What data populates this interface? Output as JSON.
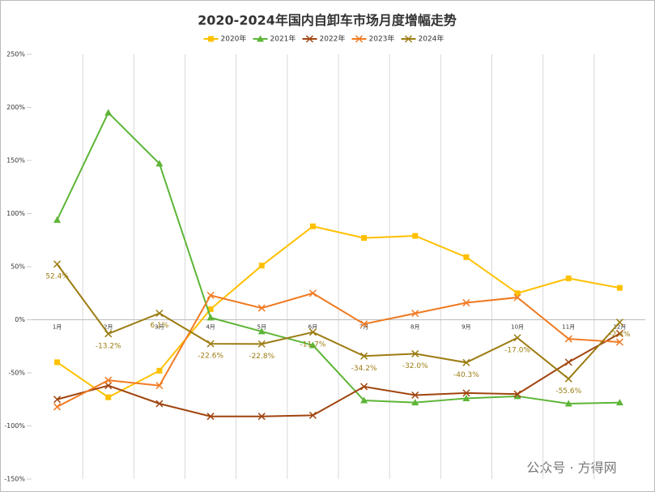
{
  "chart_data": {
    "type": "line",
    "title": "2020-2024年国内自卸车市场月度增幅走势",
    "categories": [
      "1月",
      "2月",
      "3月",
      "4月",
      "5月",
      "6月",
      "7月",
      "8月",
      "9月",
      "10月",
      "11月",
      "12月"
    ],
    "ylim": [
      -150,
      250
    ],
    "yticks": [
      {
        "value": -150,
        "label": "-150%"
      },
      {
        "value": -100,
        "label": "-100%"
      },
      {
        "value": -50,
        "label": "-50%"
      },
      {
        "value": 0,
        "label": "0%"
      },
      {
        "value": 50,
        "label": "50%"
      },
      {
        "value": 100,
        "label": "100%"
      },
      {
        "value": 150,
        "label": "150%"
      },
      {
        "value": 200,
        "label": "200%"
      },
      {
        "value": 250,
        "label": "250%"
      }
    ],
    "series": [
      {
        "name": "2020年",
        "color": "#FFC000",
        "marker": "square",
        "values": [
          -40,
          -73,
          -48,
          10,
          51,
          88,
          77,
          79,
          59,
          25,
          39,
          30
        ]
      },
      {
        "name": "2021年",
        "color": "#5DB536",
        "marker": "triangle",
        "values": [
          94,
          195,
          147,
          2,
          -11,
          -24,
          -76,
          -78,
          -74,
          -72,
          -79,
          -78
        ]
      },
      {
        "name": "2022年",
        "color": "#A0440E",
        "marker": "cross",
        "values": [
          -75,
          -62,
          -79,
          -91,
          -91,
          -90,
          -63,
          -71,
          -69,
          -70,
          -40,
          -13
        ]
      },
      {
        "name": "2023年",
        "color": "#F07A21",
        "marker": "cross",
        "values": [
          -82,
          -57,
          -62,
          23,
          11,
          25,
          -4,
          6,
          16,
          21,
          -18,
          -21
        ]
      },
      {
        "name": "2024年",
        "color": "#9C7C12",
        "marker": "cross",
        "values": [
          52.4,
          -13.2,
          6.1,
          -22.6,
          -22.8,
          -11.7,
          -34.2,
          -32.0,
          -40.3,
          -17.0,
          -55.6,
          -2.4
        ],
        "value_labels": [
          "52.4%",
          "-13.2%",
          "6.1%",
          "-22.6%",
          "-22.8%",
          "-11.7%",
          "-34.2%",
          "-32.0%",
          "-40.3%",
          "-17.0%",
          "-55.6%",
          "-2.4%"
        ]
      }
    ],
    "watermark": "公众号 · 方得网"
  }
}
